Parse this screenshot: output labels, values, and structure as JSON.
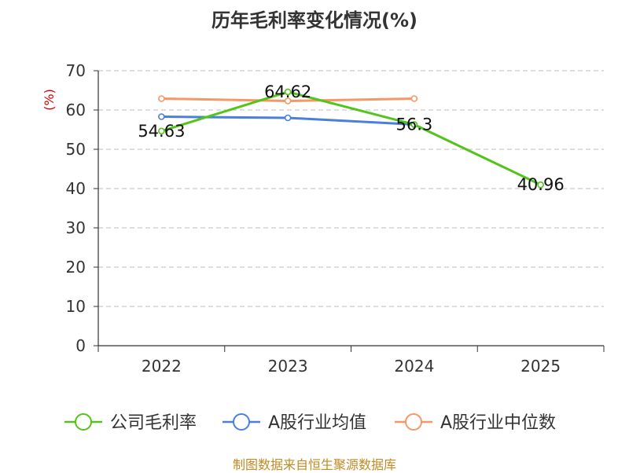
{
  "chart_data": {
    "type": "line",
    "title": "历年毛利率变化情况(%)",
    "ylabel": "(%)",
    "categories": [
      "2022",
      "2023",
      "2024",
      "2025"
    ],
    "ylim": [
      0,
      70
    ],
    "yticks": [
      0,
      10,
      20,
      30,
      40,
      50,
      60,
      70
    ],
    "grid": true,
    "legend_position": "bottom",
    "series": [
      {
        "name": "公司毛利率",
        "color": "#52c41a",
        "values": [
          54.63,
          64.62,
          56.3,
          40.96
        ],
        "labels": [
          "54.63",
          "64.62",
          "56.3",
          "40.96"
        ]
      },
      {
        "name": "A股行业均值",
        "color": "#4a7fdc",
        "values": [
          58.3,
          58.0,
          56.3,
          null
        ],
        "labels": []
      },
      {
        "name": "A股行业中位数",
        "color": "#f79767",
        "values": [
          62.9,
          62.3,
          62.9,
          null
        ],
        "labels": []
      }
    ]
  },
  "source": "制图数据来自恒生聚源数据库"
}
